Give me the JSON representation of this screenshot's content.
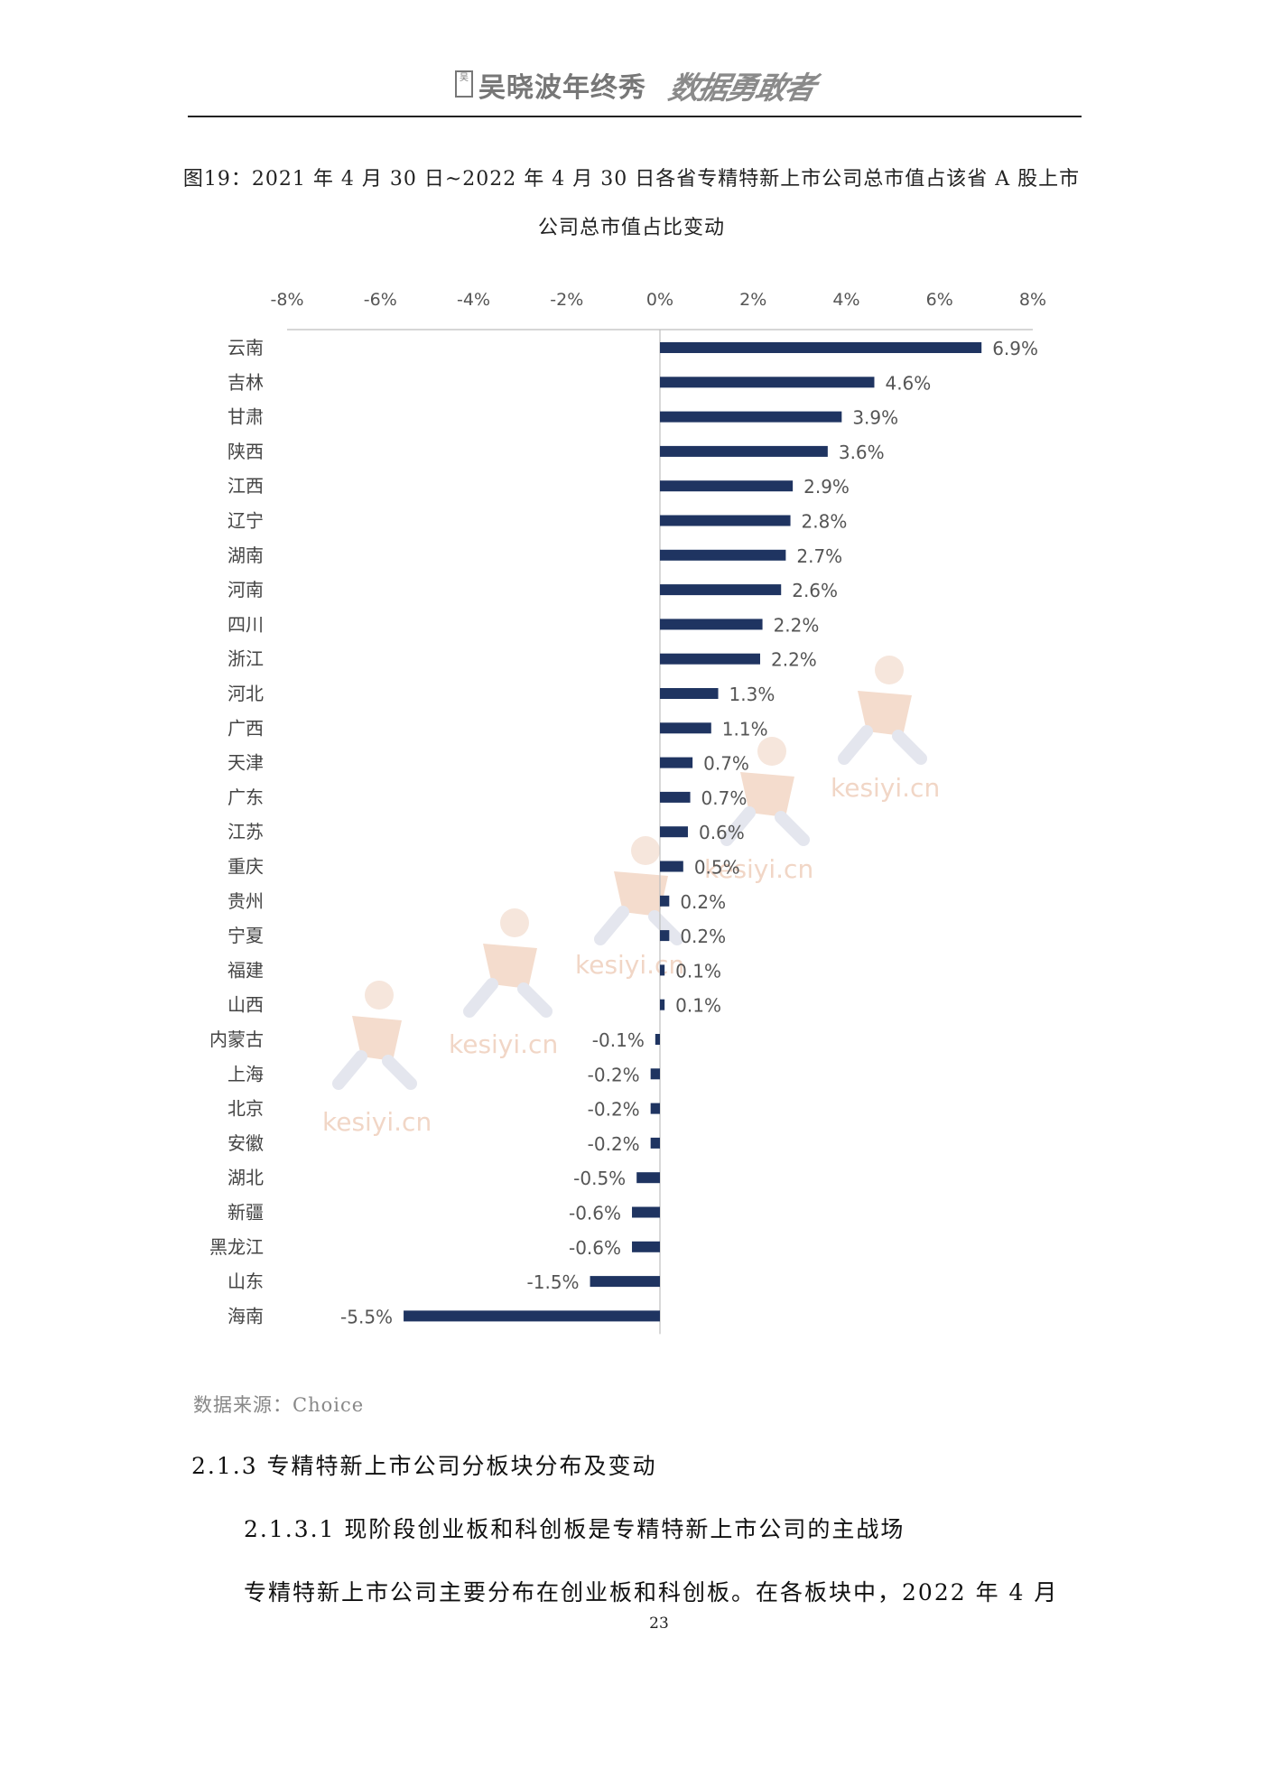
{
  "header": {
    "logo_mark": "吴",
    "title": "吴晓波年终秀",
    "brush_text": "数据勇敢者"
  },
  "figure": {
    "caption_line1": "图19：2021 年 4 月 30 日~2022 年 4 月 30 日各省专精特新上市公司总市值占该省 A 股上市",
    "caption_line2": "公司总市值占比变动"
  },
  "chart_data": {
    "type": "bar",
    "orientation": "horizontal",
    "x_ticks": [
      "-8%",
      "-6%",
      "-4%",
      "-2%",
      "0%",
      "2%",
      "4%",
      "6%",
      "8%"
    ],
    "xlim": [
      -8,
      8
    ],
    "x_axis_position": "top",
    "grid": false,
    "legend": "none",
    "bar_color": "#1f3461",
    "categories": [
      "云南",
      "吉林",
      "甘肃",
      "陕西",
      "江西",
      "辽宁",
      "湖南",
      "河南",
      "四川",
      "浙江",
      "河北",
      "广西",
      "天津",
      "广东",
      "江苏",
      "重庆",
      "贵州",
      "宁夏",
      "福建",
      "山西",
      "内蒙古",
      "上海",
      "北京",
      "安徽",
      "湖北",
      "新疆",
      "黑龙江",
      "山东",
      "海南"
    ],
    "values": [
      6.9,
      4.6,
      3.9,
      3.6,
      2.85,
      2.8,
      2.7,
      2.6,
      2.2,
      2.15,
      1.25,
      1.1,
      0.7,
      0.65,
      0.6,
      0.5,
      0.2,
      0.2,
      0.1,
      0.1,
      -0.1,
      -0.2,
      -0.2,
      -0.2,
      -0.5,
      -0.6,
      -0.6,
      -1.5,
      -5.5
    ],
    "data_labels": [
      "6.9%",
      "4.6%",
      "3.9%",
      "3.6%",
      "2.9%",
      "2.8%",
      "2.7%",
      "2.6%",
      "2.2%",
      "2.2%",
      "1.3%",
      "1.1%",
      "0.7%",
      "0.7%",
      "0.6%",
      "0.5%",
      "0.2%",
      "0.2%",
      "0.1%",
      "0.1%",
      "-0.1%",
      "-0.2%",
      "-0.2%",
      "-0.2%",
      "-0.5%",
      "-0.6%",
      "-0.6%",
      "-1.5%",
      "-5.5%"
    ]
  },
  "watermark": {
    "text": "kesiyi.cn"
  },
  "source": "数据来源：Choice",
  "section": {
    "heading_3": "2.1.3  专精特新上市公司分板块分布及变动",
    "heading_4": "2.1.3.1 现阶段创业板和科创板是专精特新上市公司的主战场",
    "paragraph_start": "专精特新上市公司主要分布在创业板和科创板。在各板块中，2022 年 4 月"
  },
  "page_number": "23"
}
